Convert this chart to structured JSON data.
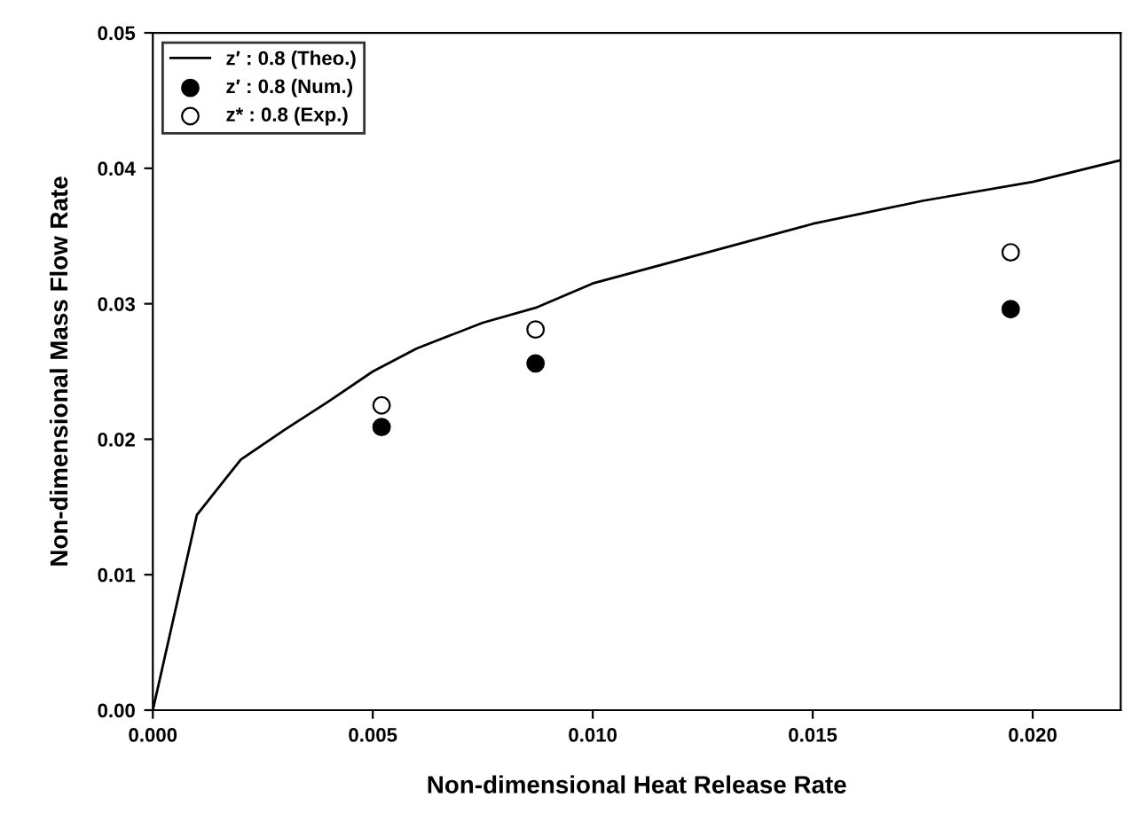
{
  "chart_data": {
    "type": "line",
    "xlabel": "Non-dimensional Heat Release Rate",
    "ylabel": "Non-dimensional Mass Flow Rate",
    "xlim": [
      0,
      0.022
    ],
    "xticks": [
      {
        "value": 0,
        "label": "0.000"
      },
      0.005,
      {
        "value": 0.01,
        "label": "0.010"
      },
      0.015,
      {
        "value": 0.02,
        "label": "0.020"
      }
    ],
    "ylim": [
      0,
      0.05
    ],
    "yticks": [
      {
        "value": 0,
        "label": "0.00"
      },
      0.01,
      0.02,
      0.03,
      0.04,
      0.05
    ],
    "grid": false,
    "legend": "top left",
    "series": [
      {
        "name": "z′ : 0.8 (Theo.)",
        "color": "#000000",
        "marker": "none",
        "line_style": "solid",
        "x": [
          0,
          0.001,
          0.002,
          0.003,
          0.004,
          0.005,
          0.006,
          0.0075,
          0.0087,
          0.01,
          0.0125,
          0.015,
          0.0175,
          0.02,
          0.022
        ],
        "values": [
          0,
          0.0144,
          0.0185,
          0.0207,
          0.0228,
          0.025,
          0.0267,
          0.0286,
          0.0297,
          0.0315,
          0.0337,
          0.0359,
          0.0376,
          0.039,
          0.0406
        ]
      },
      {
        "name": "z′ : 0.8 (Num.)",
        "type": "scatter",
        "color": "#000000",
        "marker": "circle",
        "x": [
          0.0052,
          0.0087,
          0.0195
        ],
        "values": [
          0.0209,
          0.0256,
          0.0296
        ]
      },
      {
        "name": "z* : 0.8 (Exp.)",
        "type": "scatter",
        "color": "#ffffff",
        "marker": "circle",
        "x": [
          0.0052,
          0.0087,
          0.0195
        ],
        "values": [
          0.0225,
          0.0281,
          0.0338
        ]
      }
    ]
  }
}
